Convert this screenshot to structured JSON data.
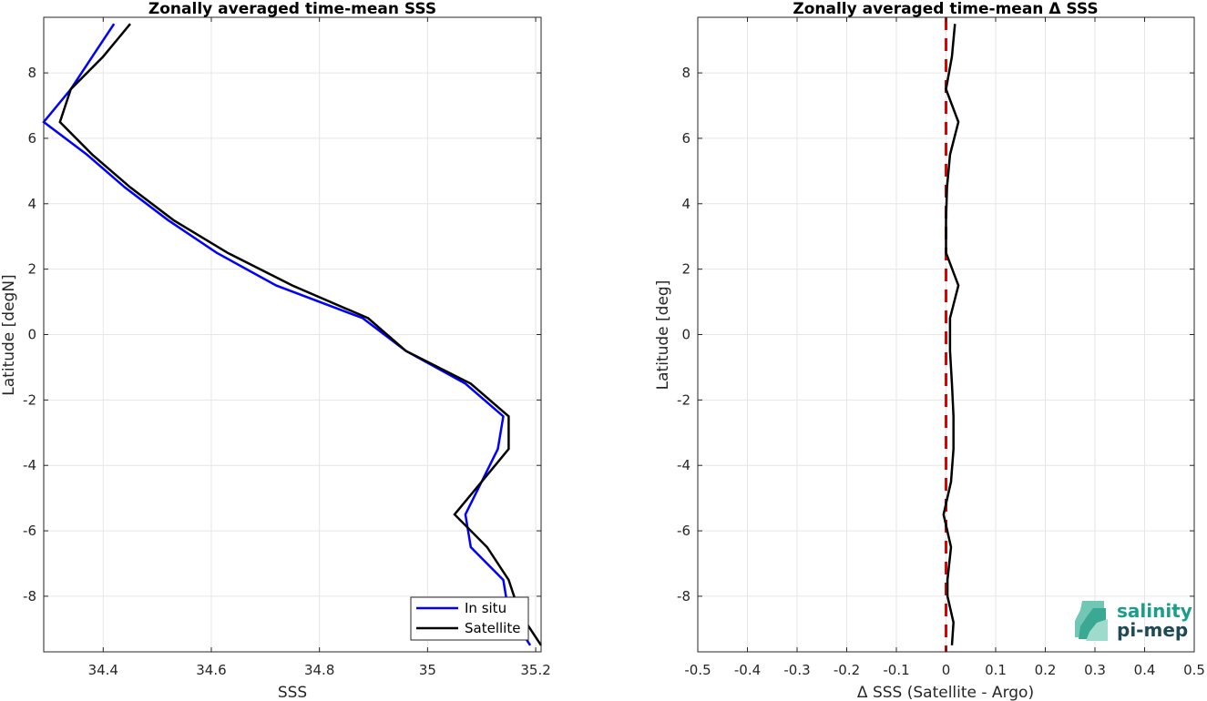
{
  "chart_data": [
    {
      "type": "line",
      "title": "Zonally averaged time-mean SSS",
      "xlabel": "SSS",
      "ylabel": "Latitude [degN]",
      "xlim": [
        34.29,
        35.21
      ],
      "ylim": [
        -9.7,
        9.7
      ],
      "xticks": [
        34.4,
        34.6,
        34.8,
        35,
        35.2
      ],
      "xtick_labels": [
        "34.4",
        "34.6",
        "34.8",
        "35",
        "35.2"
      ],
      "yticks": [
        -8,
        -6,
        -4,
        -2,
        0,
        2,
        4,
        6,
        8
      ],
      "ytick_labels": [
        "-8",
        "-6",
        "-4",
        "-2",
        "0",
        "2",
        "4",
        "6",
        "8"
      ],
      "grid": true,
      "legend_position": "bottom-right",
      "series": [
        {
          "name": "In situ",
          "color": "#0000ff",
          "points": [
            {
              "x": 34.42,
              "y": 9.5
            },
            {
              "x": 34.38,
              "y": 8.5
            },
            {
              "x": 34.34,
              "y": 7.5
            },
            {
              "x": 34.29,
              "y": 6.5
            },
            {
              "x": 34.37,
              "y": 5.5
            },
            {
              "x": 34.44,
              "y": 4.5
            },
            {
              "x": 34.52,
              "y": 3.5
            },
            {
              "x": 34.61,
              "y": 2.5
            },
            {
              "x": 34.72,
              "y": 1.5
            },
            {
              "x": 34.88,
              "y": 0.5
            },
            {
              "x": 34.96,
              "y": -0.5
            },
            {
              "x": 35.07,
              "y": -1.5
            },
            {
              "x": 35.14,
              "y": -2.5
            },
            {
              "x": 35.13,
              "y": -3.5
            },
            {
              "x": 35.1,
              "y": -4.5
            },
            {
              "x": 35.07,
              "y": -5.5
            },
            {
              "x": 35.08,
              "y": -6.5
            },
            {
              "x": 35.14,
              "y": -7.5
            },
            {
              "x": 35.15,
              "y": -8.5
            },
            {
              "x": 35.19,
              "y": -9.5
            }
          ]
        },
        {
          "name": "Satellite",
          "color": "#000000",
          "points": [
            {
              "x": 34.45,
              "y": 9.5
            },
            {
              "x": 34.4,
              "y": 8.5
            },
            {
              "x": 34.34,
              "y": 7.5
            },
            {
              "x": 34.32,
              "y": 6.5
            },
            {
              "x": 34.38,
              "y": 5.5
            },
            {
              "x": 34.45,
              "y": 4.5
            },
            {
              "x": 34.53,
              "y": 3.5
            },
            {
              "x": 34.63,
              "y": 2.5
            },
            {
              "x": 34.75,
              "y": 1.5
            },
            {
              "x": 34.89,
              "y": 0.5
            },
            {
              "x": 34.96,
              "y": -0.5
            },
            {
              "x": 35.08,
              "y": -1.5
            },
            {
              "x": 35.15,
              "y": -2.5
            },
            {
              "x": 35.15,
              "y": -3.5
            },
            {
              "x": 35.1,
              "y": -4.5
            },
            {
              "x": 35.05,
              "y": -5.5
            },
            {
              "x": 35.11,
              "y": -6.5
            },
            {
              "x": 35.15,
              "y": -7.5
            },
            {
              "x": 35.17,
              "y": -8.5
            },
            {
              "x": 35.21,
              "y": -9.5
            }
          ]
        }
      ]
    },
    {
      "type": "line",
      "title": "Zonally averaged time-mean Δ SSS",
      "xlabel": "Δ SSS (Satellite - Argo)",
      "ylabel": "Latitude [deg]",
      "xlim": [
        -0.5,
        0.5
      ],
      "ylim": [
        -9.7,
        9.7
      ],
      "xticks": [
        -0.5,
        -0.4,
        -0.3,
        -0.2,
        -0.1,
        0,
        0.1,
        0.2,
        0.3,
        0.4,
        0.5
      ],
      "xtick_labels": [
        "-0.5",
        "-0.4",
        "-0.3",
        "-0.2",
        "-0.1",
        "0",
        "0.1",
        "0.2",
        "0.3",
        "0.4",
        "0.5"
      ],
      "yticks": [
        -8,
        -6,
        -4,
        -2,
        0,
        2,
        4,
        6,
        8
      ],
      "ytick_labels": [
        "-8",
        "-6",
        "-4",
        "-2",
        "0",
        "2",
        "4",
        "6",
        "8"
      ],
      "grid": true,
      "reference_line": {
        "x": 0,
        "color": "#e00000",
        "style": "dashed"
      },
      "series": [
        {
          "color": "#000000",
          "points": [
            {
              "x": 0.018,
              "y": 9.5
            },
            {
              "x": 0.012,
              "y": 8.5
            },
            {
              "x": 0.0,
              "y": 7.5
            },
            {
              "x": 0.025,
              "y": 6.5
            },
            {
              "x": 0.008,
              "y": 5.5
            },
            {
              "x": 0.002,
              "y": 4.5
            },
            {
              "x": 0.0,
              "y": 3.5
            },
            {
              "x": 0.0,
              "y": 2.5
            },
            {
              "x": 0.025,
              "y": 1.5
            },
            {
              "x": 0.008,
              "y": 0.5
            },
            {
              "x": 0.008,
              "y": -0.5
            },
            {
              "x": 0.012,
              "y": -1.5
            },
            {
              "x": 0.015,
              "y": -2.5
            },
            {
              "x": 0.015,
              "y": -3.5
            },
            {
              "x": 0.01,
              "y": -4.5
            },
            {
              "x": -0.005,
              "y": -5.5
            },
            {
              "x": 0.01,
              "y": -6.5
            },
            {
              "x": 0.003,
              "y": -7.5
            },
            {
              "x": 0.003,
              "y": -8.0
            },
            {
              "x": 0.015,
              "y": -8.8
            },
            {
              "x": 0.012,
              "y": -9.5
            }
          ]
        }
      ]
    }
  ],
  "logo": {
    "line1": "salinity",
    "line2": "pi-mep",
    "text_color": "#1a9e8a",
    "text_color_dark": "#1f4a55"
  }
}
